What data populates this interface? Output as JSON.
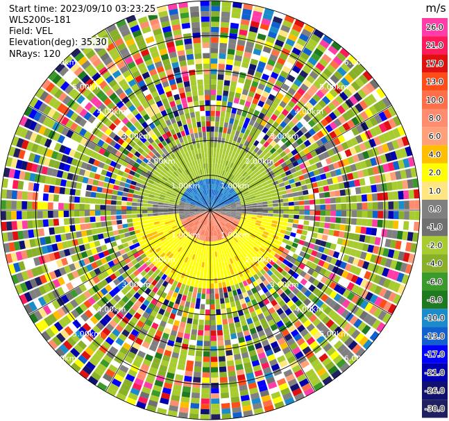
{
  "header": {
    "start_time": "Start time: 2023/09/10 03:23:25",
    "station": "WLS200s-181",
    "field": "Field: VEL",
    "elevation": "Elevation(deg): 35.30",
    "nrays": "NRays: 120"
  },
  "chart_data": {
    "type": "heatmap",
    "projection": "polar (PPI)",
    "field": "VEL",
    "units": "m/s",
    "n_rays": 120,
    "elevation_deg": 35.3,
    "range_rings_km": [
      1,
      2,
      3,
      4,
      5,
      6
    ],
    "range_ring_labels": [
      "1.00km",
      "2.00km",
      "3.00km",
      "4.00km",
      "5.00km",
      "6.00km"
    ],
    "spoke_angles_deg": [
      0,
      30,
      60,
      90,
      120,
      150,
      180,
      210,
      240,
      270,
      300,
      330
    ],
    "colorbar": {
      "title": "m/s",
      "tick_labels": [
        "26.0",
        "21.0",
        "17.0",
        "13.0",
        "10.0",
        "8.0",
        "6.0",
        "4.0",
        "2.0",
        "1.0",
        "0.0",
        "-1.0",
        "-2.0",
        "-4.0",
        "-6.0",
        "-8.0",
        "-10.0",
        "-13.0",
        "-17.0",
        "-21.0",
        "-26.0",
        "-30.0"
      ],
      "colors": [
        "#ff3ca8",
        "#ff1a5c",
        "#e01010",
        "#ff4d1a",
        "#ff6f4a",
        "#ff8c6e",
        "#ffa07a",
        "#ffbf00",
        "#ffff00",
        "#ffe680",
        "#808080",
        "#707070",
        "#a8cc30",
        "#88b028",
        "#3a9a2a",
        "#1f7a1f",
        "#1a8ccc",
        "#1060d0",
        "#0000ff",
        "#0000b0",
        "#101070",
        "#202060"
      ]
    },
    "center_pattern": [
      {
        "sector": "north",
        "range_km": [
          0,
          0.9
        ],
        "velocity_ms": -8.0
      },
      {
        "sector": "north",
        "range_km": [
          0.9,
          1.9
        ],
        "velocity_ms": -2.0
      },
      {
        "sector": "south",
        "range_km": [
          0,
          0.9
        ],
        "velocity_ms": 6.0
      },
      {
        "sector": "south",
        "range_km": [
          0.9,
          2.3
        ],
        "velocity_ms": 2.0
      },
      {
        "sector": "east/west",
        "range_km": [
          0,
          1.6
        ],
        "velocity_ms": 0.0
      },
      {
        "sector": "all",
        "range_km": [
          2.3,
          6.0
        ],
        "velocity_ms": "noise"
      }
    ]
  }
}
